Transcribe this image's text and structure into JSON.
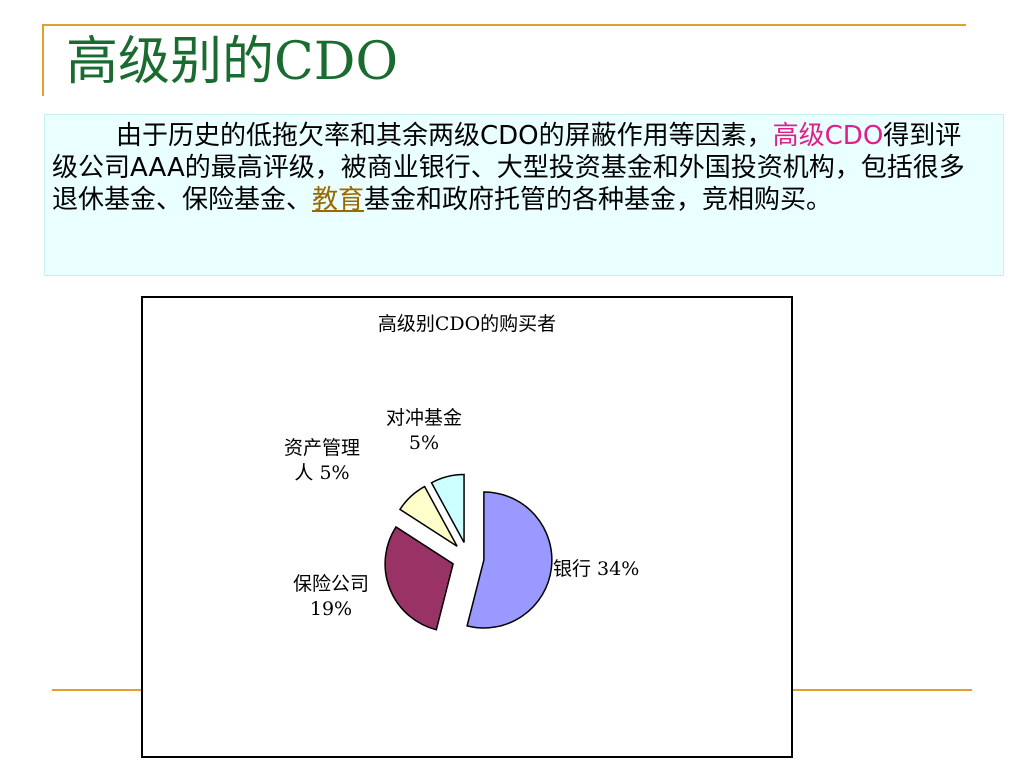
{
  "slide": {
    "title": "高级别的CDO",
    "body": {
      "line_start": "由于历史的低拖欠率和其余两级CDO的屏蔽作用等因素，",
      "highlight": "高级CDO",
      "middle": "得到评级公司AAA的最高评级，被商业银行、大型投资基金和外国投资机构，包括很多退休基金、保险基金、",
      "link_text": "教育",
      "end": "基金和政府托管的各种基金，竞相购买。"
    }
  },
  "colors": {
    "title": "#1a6b2f",
    "highlight": "#e0208a",
    "accent_line": "#e0a030",
    "text_box_bg": "#eaffff"
  },
  "chart_data": {
    "type": "pie",
    "title": "高级别CDO的购买者",
    "note": "The printed slice labels (34%, 19%, 5%, 5%) do not sum to 100%; the drawn slices show 银行 as about 54% and 保险公司 as about 30% of the pie, consistent with the four labeled values rescaled to 100%.",
    "slices": [
      {
        "name": "银行",
        "label": "银行 34%",
        "value": 34,
        "color": "#9999ff"
      },
      {
        "name": "保险公司",
        "label_lines": [
          "保险公司",
          "19%"
        ],
        "value": 19,
        "color": "#993366"
      },
      {
        "name": "资产管理人",
        "label_lines": [
          "资产管理",
          "人 5%"
        ],
        "value": 5,
        "color": "#ffffcc"
      },
      {
        "name": "对冲基金",
        "label_lines": [
          "对冲基金",
          "5%"
        ],
        "value": 5,
        "color": "#ccffff"
      }
    ],
    "exploded": true,
    "legend": "none",
    "start_position": "12 o'clock",
    "direction": "clockwise"
  }
}
